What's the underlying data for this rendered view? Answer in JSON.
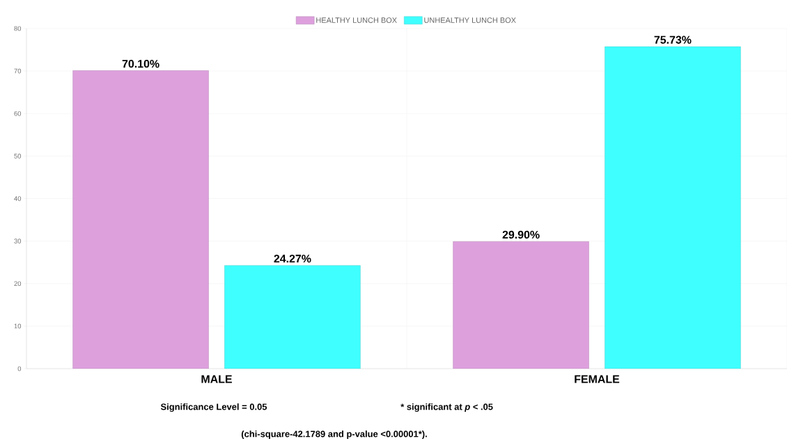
{
  "chart_data": {
    "type": "bar",
    "categories": [
      "MALE",
      "FEMALE"
    ],
    "series": [
      {
        "name": "HEALTHY LUNCH BOX",
        "color": "#dda0dd",
        "values": [
          70.1,
          29.9
        ],
        "value_labels": [
          "70.10%",
          "29.90%"
        ]
      },
      {
        "name": "UNHEALTHY LUNCH BOX",
        "color": "#40ffff",
        "values": [
          24.27,
          75.73
        ],
        "value_labels": [
          "24.27%",
          "75.73%"
        ]
      }
    ],
    "ylim": [
      0,
      80
    ],
    "yticks": [
      0,
      10,
      20,
      30,
      40,
      50,
      60,
      70,
      80
    ],
    "grid": true,
    "legend": "top",
    "annotations": [
      "Significance Level = 0.05",
      "* significant at *p* < .05",
      "(chi-square-42.1789 and p-value <0.00001*)."
    ]
  }
}
